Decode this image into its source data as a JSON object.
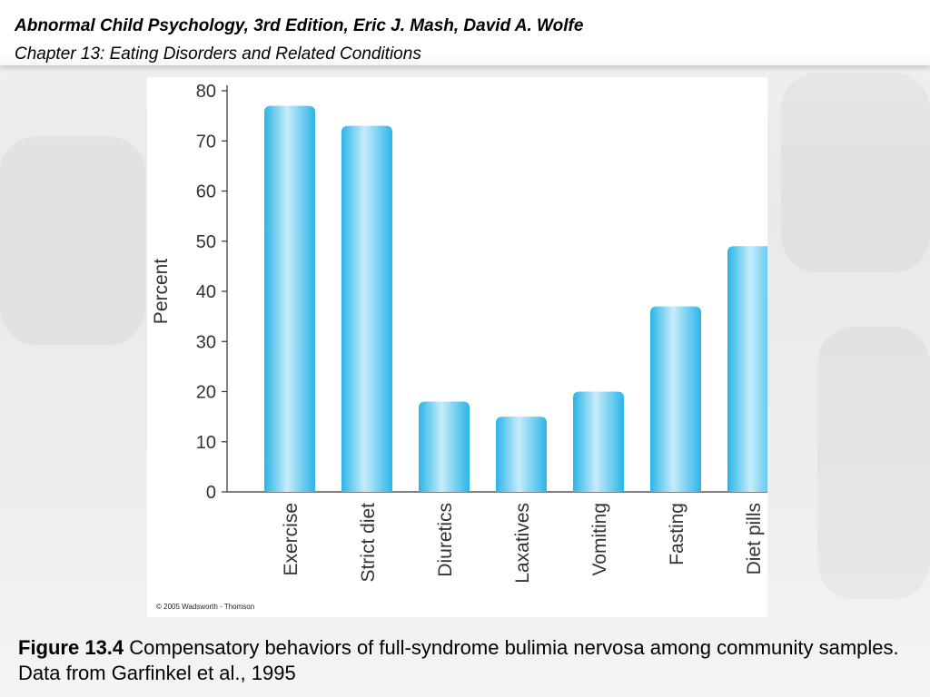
{
  "header": {
    "title": "Abnormal Child Psychology, 3rd Edition, Eric J. Mash, David A. Wolfe",
    "subtitle": "Chapter 13: Eating Disorders and Related Conditions"
  },
  "chart_data": {
    "type": "bar",
    "categories": [
      "Exercise",
      "Strict diet",
      "Diuretics",
      "Laxatives",
      "Vomiting",
      "Fasting",
      "Diet pills"
    ],
    "values": [
      77,
      73,
      18,
      15,
      20,
      37,
      49
    ],
    "xlabel": "",
    "ylabel": "Percent",
    "ylim": [
      0,
      80
    ],
    "yticks": [
      0,
      10,
      20,
      30,
      40,
      50,
      60,
      70,
      80
    ],
    "grid": false,
    "legend": "none",
    "bar_color": "#2bb5e8",
    "bar_highlight": "#c6ecfa",
    "copyright": "© 2005 Wadsworth - Thomson"
  },
  "caption": {
    "label": "Figure 13.4",
    "text": " Compensatory behaviors of full-syndrome bulimia nervosa among community samples.  Data from Garfinkel et al., 1995"
  }
}
